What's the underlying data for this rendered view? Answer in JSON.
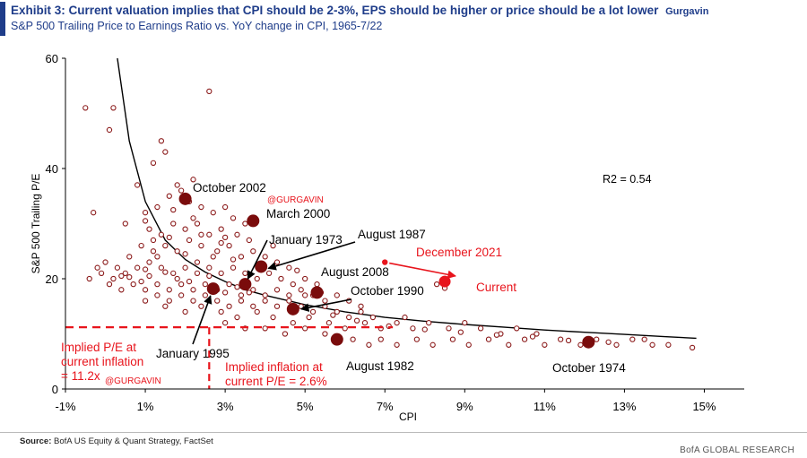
{
  "header": {
    "title": "Exhibit 3: Current valuation implies that CPI should be 2-3%, EPS should be higher or price should be a lot lower",
    "title_tag": "Gurgavin",
    "subtitle": "S&P 500 Trailing Price to Earnings Ratio vs. YoY change in CPI, 1965-7/22"
  },
  "footer": {
    "source_label": "Source:",
    "source_text": "BofA US Equity & Quant Strategy, FactSet",
    "brand": "BofA GLOBAL RESEARCH"
  },
  "colors": {
    "title_blue": "#1f3d8a",
    "point_outline": "#8b1a1a",
    "highlight": "#7a0c0c",
    "current_red": "#e8141c",
    "fit_line": "#000000"
  },
  "chart_data": {
    "type": "scatter",
    "xlabel": "CPI",
    "ylabel": "S&P 500 Trailing P/E",
    "xlim": [
      -1,
      16
    ],
    "ylim": [
      0,
      60
    ],
    "x_ticks": [
      "-1%",
      "1%",
      "3%",
      "5%",
      "7%",
      "9%",
      "11%",
      "13%",
      "15%"
    ],
    "x_tick_values": [
      -1,
      1,
      3,
      5,
      7,
      9,
      11,
      13,
      15
    ],
    "y_ticks": [
      "0",
      "20",
      "40",
      "60"
    ],
    "y_tick_values": [
      0,
      20,
      40,
      60
    ],
    "grid": false,
    "r2_label": "R2 = 0.54",
    "fit_curve": [
      [
        0.3,
        60
      ],
      [
        0.6,
        45
      ],
      [
        1.0,
        34
      ],
      [
        1.5,
        27
      ],
      [
        2.0,
        23.5
      ],
      [
        2.5,
        21.2
      ],
      [
        3.0,
        19.5
      ],
      [
        3.5,
        18
      ],
      [
        4.0,
        17
      ],
      [
        5.0,
        15.3
      ],
      [
        6.0,
        14
      ],
      [
        7.0,
        13
      ],
      [
        8.0,
        12.3
      ],
      [
        9.0,
        11.7
      ],
      [
        10.0,
        11.2
      ],
      [
        11.0,
        10.7
      ],
      [
        12.0,
        10.3
      ],
      [
        13.0,
        9.9
      ],
      [
        14.0,
        9.5
      ],
      [
        14.8,
        9.2
      ]
    ],
    "highlights": [
      {
        "label": "October 2002",
        "x": 2.0,
        "y": 34.5
      },
      {
        "label": "March 2000",
        "x": 3.7,
        "y": 30.5
      },
      {
        "label": "January 1973",
        "x": 3.5,
        "y": 19.0
      },
      {
        "label": "August 1987",
        "x": 3.9,
        "y": 22.2
      },
      {
        "label": "August 2008",
        "x": 5.3,
        "y": 17.5
      },
      {
        "label": "October 1990",
        "x": 4.7,
        "y": 14.5
      },
      {
        "label": "January 1995",
        "x": 2.7,
        "y": 18.2
      },
      {
        "label": "August 1982",
        "x": 5.8,
        "y": 9.0
      },
      {
        "label": "October 1974",
        "x": 12.1,
        "y": 8.5
      }
    ],
    "current": {
      "label": "Current",
      "x": 8.5,
      "y": 19.5
    },
    "december_2021": {
      "label": "December 2021",
      "x": 7.0,
      "y": 23.0
    },
    "implied": {
      "pe_label_lines": [
        "Implied P/E at",
        "current inflation",
        "= 11.2x"
      ],
      "pe_value": 11.2,
      "inflation_label_lines": [
        "Implied inflation at",
        "current P/E = 2.6%"
      ],
      "inflation_value": 2.6
    },
    "watermark": "@GURGAVIN",
    "points": [
      [
        -0.5,
        51
      ],
      [
        0.2,
        51
      ],
      [
        2.6,
        54
      ],
      [
        0.1,
        47
      ],
      [
        1.4,
        45
      ],
      [
        1.5,
        43
      ],
      [
        1.2,
        41
      ],
      [
        0.8,
        37
      ],
      [
        1.8,
        37
      ],
      [
        2.2,
        38
      ],
      [
        -0.3,
        32
      ],
      [
        1.0,
        32
      ],
      [
        1.3,
        33
      ],
      [
        1.6,
        35
      ],
      [
        1.9,
        36
      ],
      [
        2.1,
        34
      ],
      [
        2.4,
        33
      ],
      [
        2.7,
        32
      ],
      [
        3.0,
        33
      ],
      [
        3.2,
        31
      ],
      [
        0.5,
        30
      ],
      [
        1.1,
        29
      ],
      [
        1.4,
        28
      ],
      [
        1.7,
        30
      ],
      [
        2.0,
        29
      ],
      [
        2.3,
        30
      ],
      [
        2.6,
        28
      ],
      [
        2.9,
        29
      ],
      [
        3.3,
        28
      ],
      [
        3.6,
        27
      ],
      [
        -0.2,
        22
      ],
      [
        0.0,
        23
      ],
      [
        0.3,
        22
      ],
      [
        0.6,
        24
      ],
      [
        0.9,
        26
      ],
      [
        1.2,
        25
      ],
      [
        1.5,
        26
      ],
      [
        1.8,
        25
      ],
      [
        2.1,
        27
      ],
      [
        2.4,
        26
      ],
      [
        2.8,
        25
      ],
      [
        3.1,
        26
      ],
      [
        3.4,
        24
      ],
      [
        3.7,
        25
      ],
      [
        4.0,
        24
      ],
      [
        4.3,
        23
      ],
      [
        4.6,
        22
      ],
      [
        -0.4,
        20
      ],
      [
        -0.1,
        21
      ],
      [
        0.2,
        20
      ],
      [
        0.5,
        21
      ],
      [
        0.8,
        22
      ],
      [
        1.1,
        23
      ],
      [
        1.4,
        22
      ],
      [
        1.7,
        21
      ],
      [
        2.0,
        22
      ],
      [
        2.3,
        23
      ],
      [
        2.6,
        22
      ],
      [
        2.9,
        21
      ],
      [
        3.2,
        22
      ],
      [
        3.5,
        21
      ],
      [
        3.8,
        20
      ],
      [
        4.1,
        21
      ],
      [
        4.4,
        20
      ],
      [
        4.7,
        19
      ],
      [
        5.0,
        20
      ],
      [
        5.3,
        19
      ],
      [
        0.4,
        18
      ],
      [
        0.7,
        19
      ],
      [
        1.0,
        18
      ],
      [
        1.3,
        19
      ],
      [
        1.6,
        18
      ],
      [
        1.9,
        19
      ],
      [
        2.2,
        18
      ],
      [
        2.5,
        19
      ],
      [
        2.8,
        18
      ],
      [
        3.1,
        19
      ],
      [
        3.4,
        17
      ],
      [
        3.7,
        18
      ],
      [
        4.0,
        17
      ],
      [
        4.3,
        18
      ],
      [
        4.6,
        17
      ],
      [
        4.9,
        18
      ],
      [
        5.2,
        17
      ],
      [
        5.5,
        16
      ],
      [
        5.8,
        17
      ],
      [
        6.1,
        16
      ],
      [
        6.4,
        15
      ],
      [
        1.0,
        16
      ],
      [
        1.3,
        17
      ],
      [
        1.6,
        16
      ],
      [
        1.9,
        17
      ],
      [
        2.2,
        16
      ],
      [
        2.5,
        17
      ],
      [
        2.8,
        16
      ],
      [
        3.1,
        15
      ],
      [
        3.4,
        16
      ],
      [
        3.7,
        15
      ],
      [
        4.0,
        16
      ],
      [
        4.3,
        15
      ],
      [
        4.6,
        16
      ],
      [
        4.9,
        15
      ],
      [
        5.2,
        14
      ],
      [
        5.5,
        15
      ],
      [
        5.8,
        14
      ],
      [
        6.1,
        13
      ],
      [
        6.4,
        14
      ],
      [
        6.7,
        13
      ],
      [
        1.5,
        15
      ],
      [
        2.0,
        14
      ],
      [
        2.4,
        15
      ],
      [
        2.9,
        14
      ],
      [
        3.3,
        13
      ],
      [
        3.8,
        14
      ],
      [
        4.2,
        13
      ],
      [
        4.7,
        12
      ],
      [
        5.1,
        13
      ],
      [
        5.6,
        12
      ],
      [
        6.0,
        11
      ],
      [
        6.5,
        12
      ],
      [
        6.9,
        11
      ],
      [
        7.3,
        12
      ],
      [
        7.7,
        11
      ],
      [
        8.1,
        12
      ],
      [
        8.6,
        11
      ],
      [
        9.0,
        12
      ],
      [
        9.4,
        11
      ],
      [
        9.9,
        10
      ],
      [
        10.3,
        11
      ],
      [
        10.8,
        10
      ],
      [
        3.0,
        12
      ],
      [
        3.5,
        11
      ],
      [
        4.0,
        11
      ],
      [
        4.5,
        10
      ],
      [
        5.0,
        11
      ],
      [
        5.5,
        10
      ],
      [
        6.2,
        9
      ],
      [
        6.6,
        8
      ],
      [
        6.9,
        9
      ],
      [
        7.3,
        8
      ],
      [
        7.8,
        9
      ],
      [
        8.2,
        8
      ],
      [
        8.7,
        9
      ],
      [
        9.1,
        8
      ],
      [
        9.6,
        9
      ],
      [
        10.1,
        8
      ],
      [
        10.5,
        9
      ],
      [
        11.0,
        8
      ],
      [
        11.4,
        9
      ],
      [
        11.9,
        8
      ],
      [
        12.3,
        9
      ],
      [
        12.8,
        8
      ],
      [
        13.2,
        9
      ],
      [
        13.7,
        8
      ],
      [
        14.1,
        8
      ],
      [
        14.7,
        7.5
      ],
      [
        13.5,
        9
      ],
      [
        12.6,
        8.5
      ],
      [
        11.6,
        8.8
      ],
      [
        10.7,
        9.5
      ],
      [
        9.8,
        9.8
      ],
      [
        8.9,
        10.3
      ],
      [
        8.0,
        10.8
      ],
      [
        7.1,
        11.4
      ],
      [
        6.3,
        12.4
      ],
      [
        5.7,
        13.4
      ],
      [
        5.4,
        17.5
      ],
      [
        7.5,
        13
      ],
      [
        8.3,
        19
      ],
      [
        8.5,
        18.3
      ],
      [
        0.1,
        19
      ],
      [
        0.4,
        20.5
      ],
      [
        0.9,
        19.5
      ],
      [
        1.1,
        20.5
      ],
      [
        1.8,
        20
      ],
      [
        2.1,
        19.5
      ],
      [
        2.6,
        20.5
      ],
      [
        3.0,
        17.5
      ],
      [
        3.3,
        18.5
      ],
      [
        3.6,
        17.5
      ],
      [
        2.3,
        21
      ],
      [
        1.5,
        21.2
      ],
      [
        1.0,
        21.7
      ],
      [
        0.6,
        20.3
      ],
      [
        2.7,
        24
      ],
      [
        1.3,
        24
      ],
      [
        2.0,
        24.5
      ],
      [
        3.2,
        23.5
      ],
      [
        4.8,
        21.5
      ],
      [
        5.0,
        17
      ],
      [
        1.6,
        27.5
      ],
      [
        2.4,
        28
      ],
      [
        2.9,
        26.5
      ],
      [
        1.2,
        27
      ],
      [
        4.2,
        26
      ],
      [
        3.0,
        27.5
      ],
      [
        1.0,
        30.5
      ],
      [
        2.2,
        31
      ],
      [
        1.7,
        32.5
      ],
      [
        3.5,
        30
      ]
    ]
  }
}
